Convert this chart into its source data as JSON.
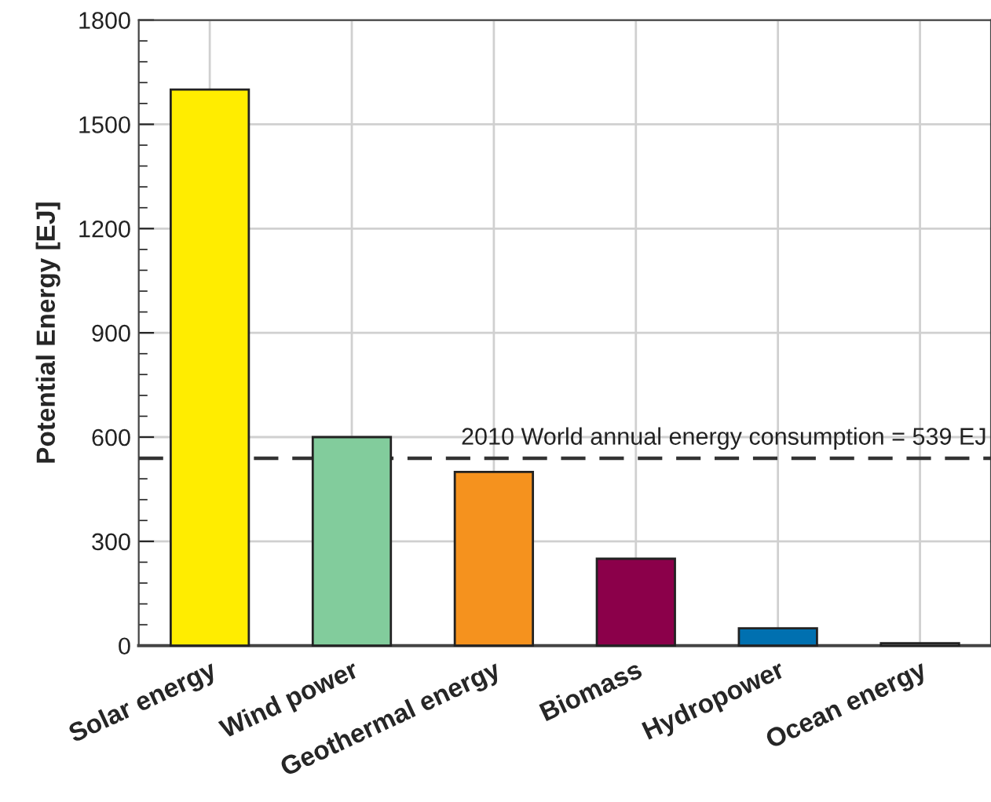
{
  "chart_data": {
    "type": "bar",
    "ylabel": "Potential Energy [EJ]",
    "categories": [
      "Solar energy",
      "Wind power",
      "Geothermal energy",
      "Biomass",
      "Hydropower",
      "Ocean energy"
    ],
    "values": [
      1600,
      600,
      500,
      250,
      50,
      7
    ],
    "colors": [
      "#ffed00",
      "#82cc9c",
      "#f5921e",
      "#8b004a",
      "#0070b0",
      "#c8c8c8"
    ],
    "ylim": [
      0,
      1800
    ],
    "yticks": [
      0,
      300,
      600,
      900,
      1200,
      1500,
      1800
    ],
    "grid": true,
    "ref_lines": [
      {
        "axis": "y",
        "value": 539,
        "label": "2010 World annual energy consumption = 539 EJ",
        "color": "#333333",
        "line_style": "dashed"
      }
    ]
  }
}
